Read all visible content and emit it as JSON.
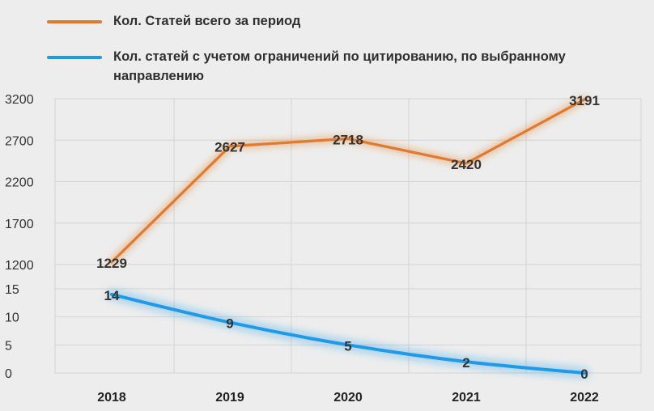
{
  "chart_data": {
    "type": "line",
    "categories": [
      "2018",
      "2019",
      "2020",
      "2021",
      "2022"
    ],
    "series": [
      {
        "name": "Кол. Статей всего за период",
        "values": [
          1229,
          2627,
          2718,
          2420,
          3191
        ],
        "color": "#e07a2e",
        "ylim": [
          1200,
          3200
        ],
        "yticks": [
          "1200",
          "1700",
          "2200",
          "2700",
          "3200"
        ]
      },
      {
        "name": "Кол. статей с учетом ограничений по цитированию, по выбранному направлению",
        "values": [
          14,
          9,
          5,
          2,
          0
        ],
        "color": "#1e9be8",
        "ylim": [
          0,
          15
        ],
        "yticks": [
          "0",
          "5",
          "10",
          "15"
        ]
      }
    ],
    "legend_position": "top-left",
    "grid": true
  }
}
